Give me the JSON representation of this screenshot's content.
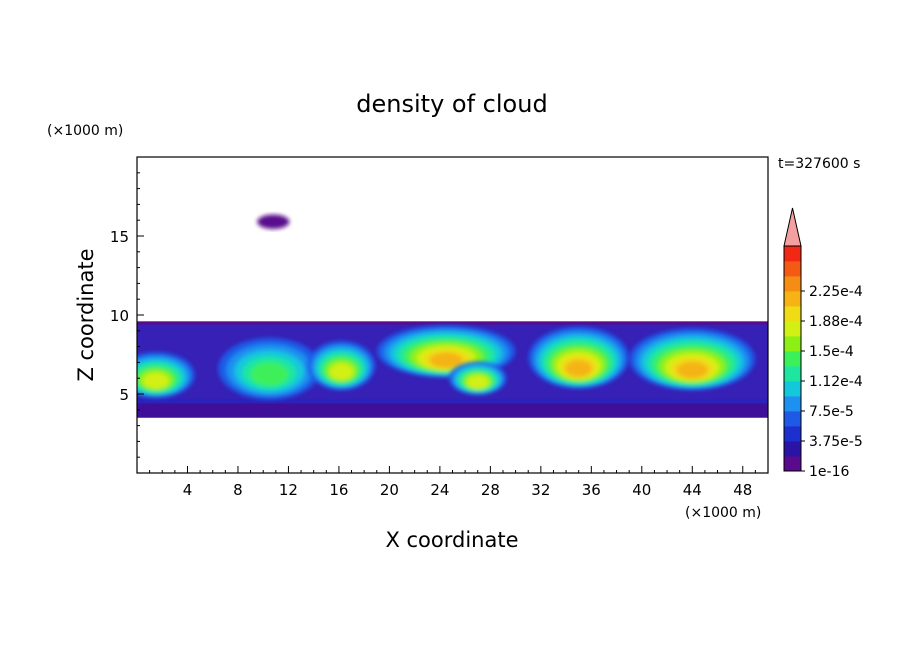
{
  "chart_data": {
    "type": "heatmap",
    "title": "density of cloud",
    "time_label": "t=327600 s",
    "xlabel": "X coordinate",
    "ylabel": "Z coordinate",
    "x_unit": "(×1000 m)",
    "y_unit": "(×1000 m)",
    "xlim": [
      0,
      50
    ],
    "ylim": [
      0,
      20
    ],
    "x_ticks": [
      4,
      8,
      12,
      16,
      20,
      24,
      28,
      32,
      36,
      40,
      44,
      48
    ],
    "y_ticks": [
      5,
      10,
      15
    ],
    "colorbar": {
      "levels": [
        "1e-16",
        "3.75e-5",
        "7.5e-5",
        "1.12e-4",
        "1.5e-4",
        "1.88e-4",
        "2.25e-4"
      ],
      "colors": [
        "#5a0a8c",
        "#2a14a6",
        "#1e2fd0",
        "#1e5ae6",
        "#1e90f0",
        "#14c8dc",
        "#1ee6a0",
        "#3cf05a",
        "#8cf014",
        "#d2f014",
        "#f0dc14",
        "#f5b414",
        "#f58c14",
        "#f55a14",
        "#f02814",
        "#f5a0a0"
      ]
    },
    "cloud_layer_z": [
      3.5,
      9.6
    ],
    "features": [
      {
        "shape": "band",
        "z": [
          3.5,
          9.6
        ],
        "value": 1e-16
      },
      {
        "shape": "blob",
        "x": 10.8,
        "z": 15.9,
        "rx": 0.8,
        "rz": 0.2,
        "value": 1e-16
      },
      {
        "shape": "blob",
        "x": 1.5,
        "z": 6.2,
        "rx": 2.6,
        "rz": 1.2,
        "value": 0.00015
      },
      {
        "shape": "blob",
        "x": 10.5,
        "z": 6.6,
        "rx": 3.6,
        "rz": 1.7,
        "value": 0.00012
      },
      {
        "shape": "blob",
        "x": 16.2,
        "z": 6.8,
        "rx": 2.2,
        "rz": 1.3,
        "value": 0.00015
      },
      {
        "shape": "blob",
        "x": 24.5,
        "z": 7.7,
        "rx": 5.0,
        "rz": 1.4,
        "value": 0.0002
      },
      {
        "shape": "blob",
        "x": 27.0,
        "z": 6.0,
        "rx": 1.8,
        "rz": 0.8,
        "value": 0.00015
      },
      {
        "shape": "blob",
        "x": 35.0,
        "z": 7.3,
        "rx": 3.5,
        "rz": 1.7,
        "value": 0.00019
      },
      {
        "shape": "blob",
        "x": 44.0,
        "z": 7.2,
        "rx": 4.5,
        "rz": 1.7,
        "value": 0.00019
      }
    ]
  }
}
